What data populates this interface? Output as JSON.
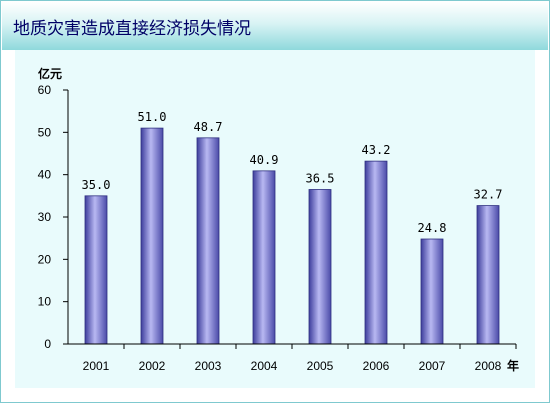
{
  "title": "地质灾害造成直接经济损失情况",
  "chart_data": {
    "type": "bar",
    "title": "地质灾害造成直接经济损失情况",
    "ylabel": "亿元",
    "xlabel": "年",
    "categories": [
      "2001",
      "2002",
      "2003",
      "2004",
      "2005",
      "2006",
      "2007",
      "2008"
    ],
    "values": [
      35.0,
      51.0,
      48.7,
      40.9,
      36.5,
      43.2,
      24.8,
      32.7
    ],
    "value_labels": [
      "35.0",
      "51.0",
      "48.7",
      "40.9",
      "36.5",
      "43.2",
      "24.8",
      "32.7"
    ],
    "ylim": [
      0,
      60
    ],
    "yticks": [
      "0",
      "10",
      "20",
      "30",
      "40",
      "50",
      "60"
    ],
    "grid": false,
    "bar_color": "#8585d8"
  }
}
